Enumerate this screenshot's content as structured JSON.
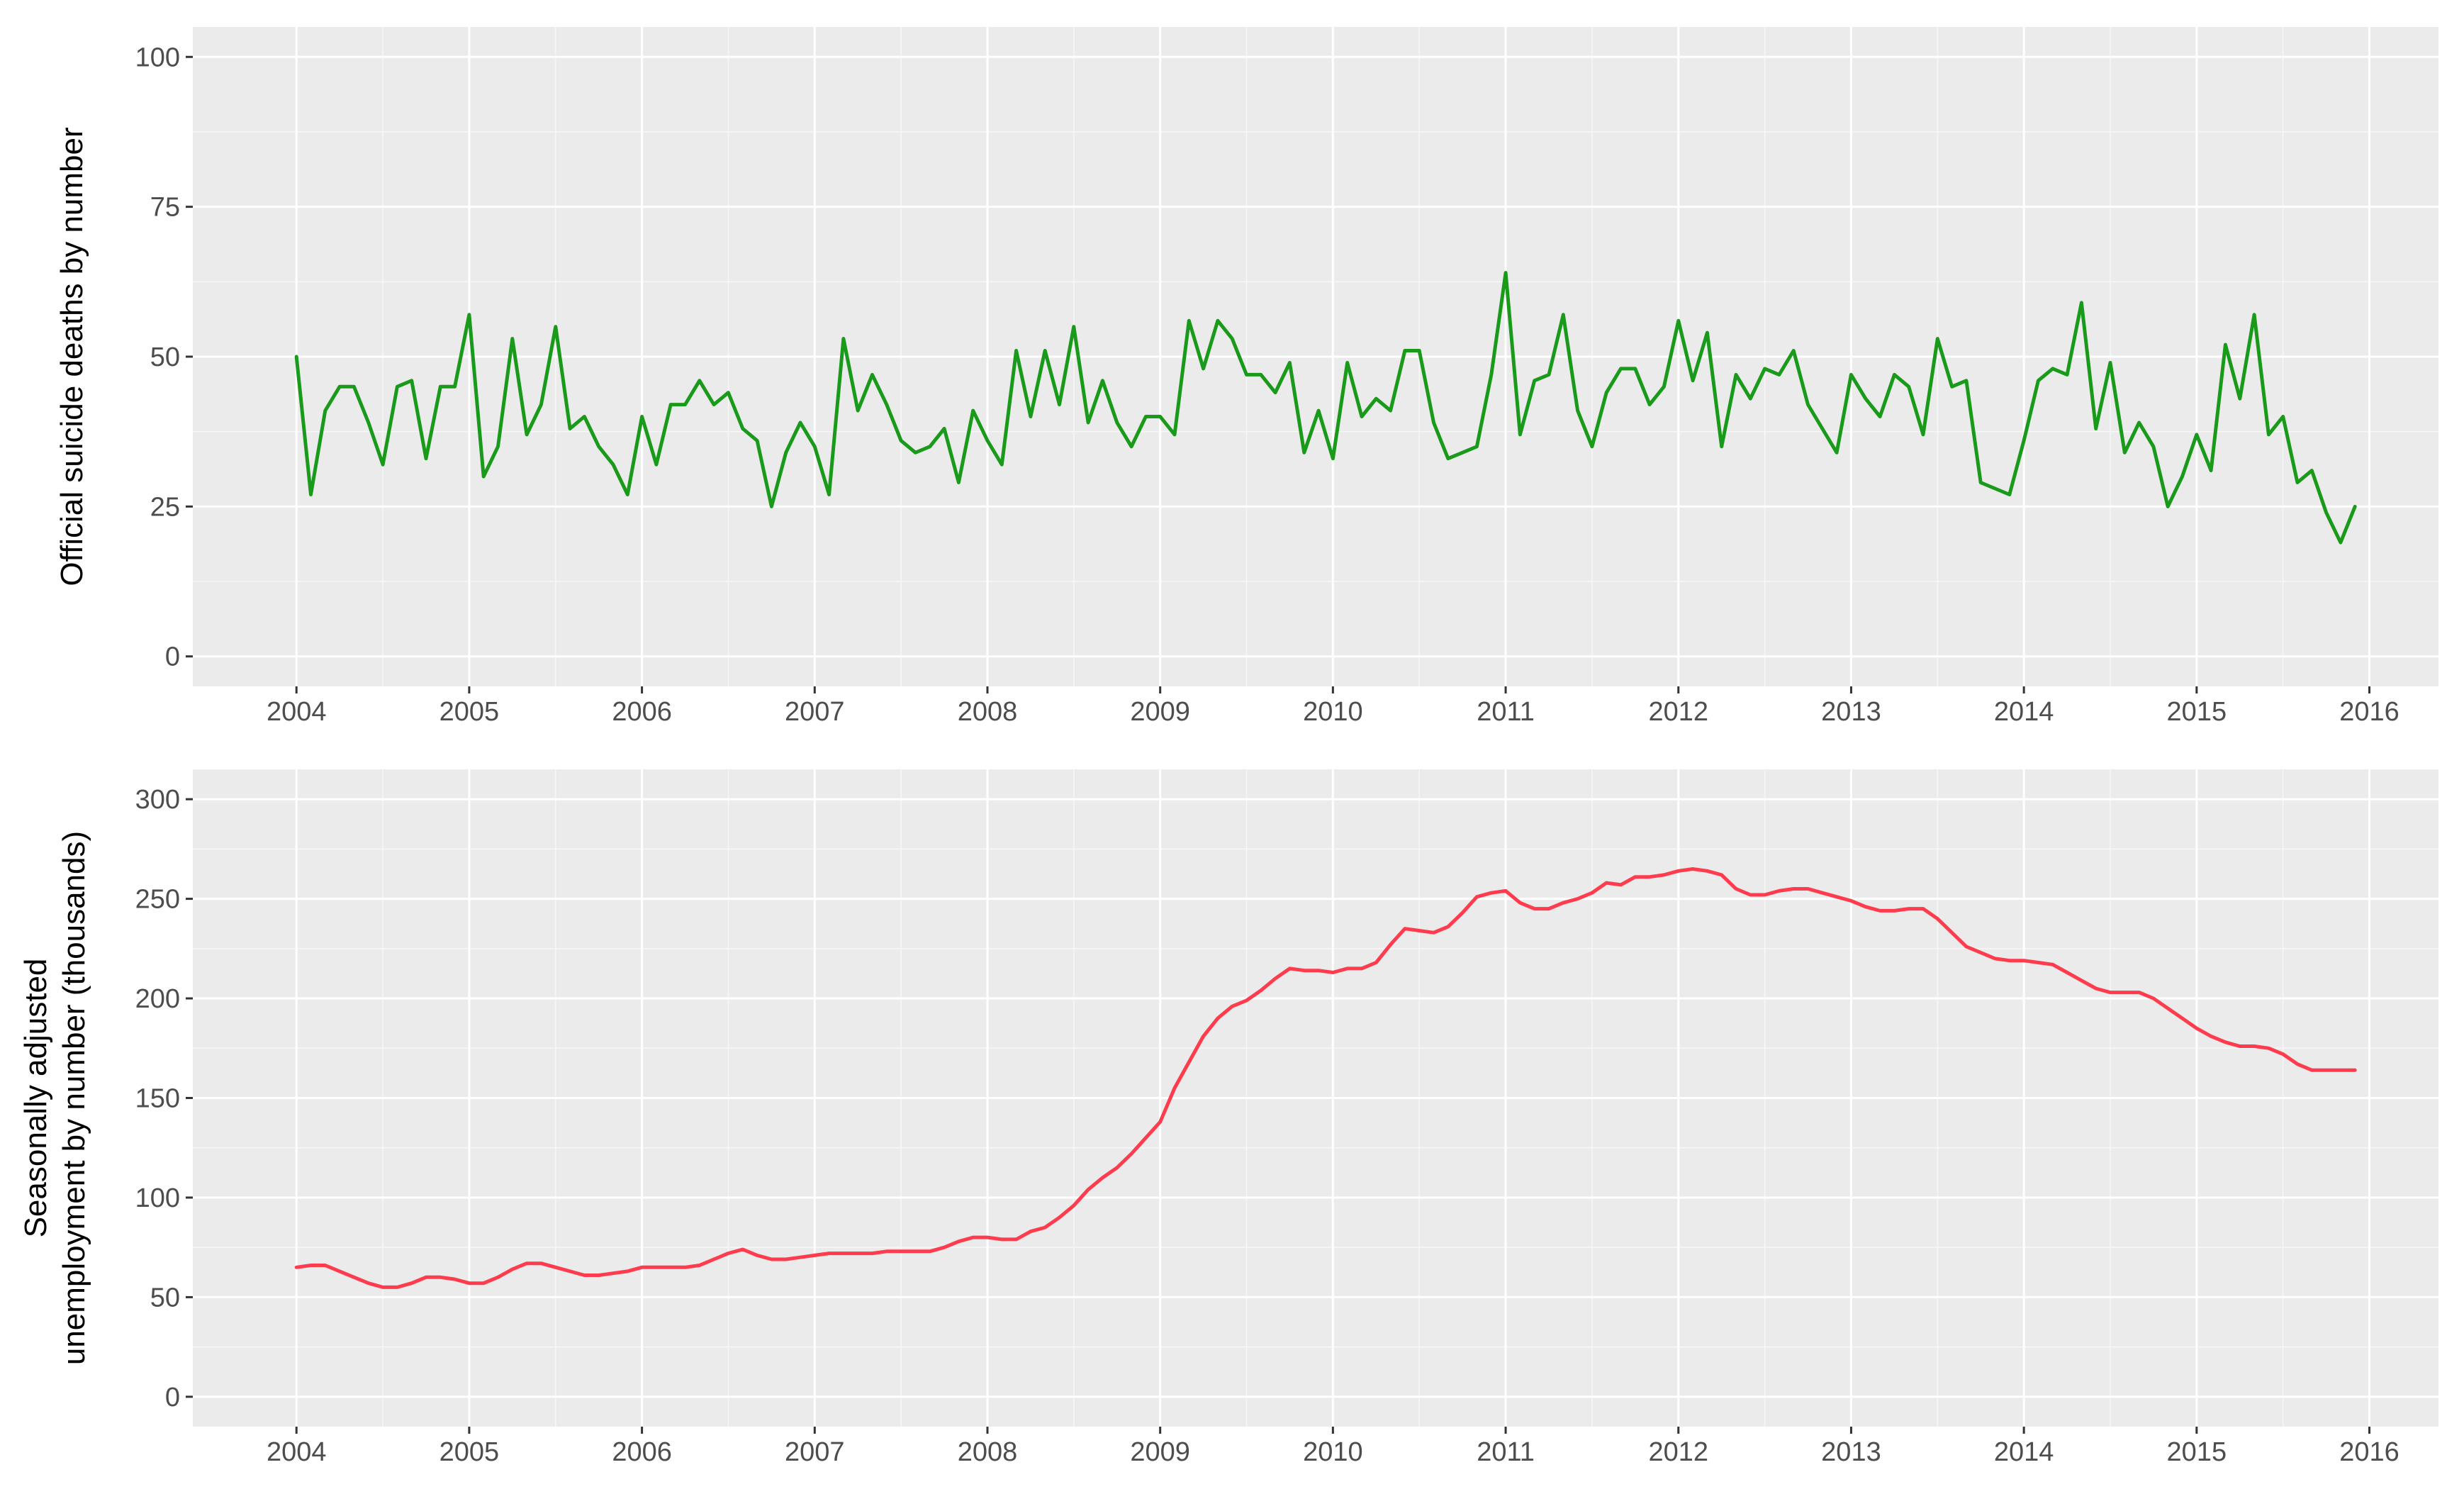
{
  "chart_data": [
    {
      "type": "line",
      "ylabel": "Official suicide deaths by number",
      "xlim": [
        2003.4,
        2016.4
      ],
      "ylim": [
        -5,
        105
      ],
      "x_ticks": [
        2004,
        2005,
        2006,
        2007,
        2008,
        2009,
        2010,
        2011,
        2012,
        2013,
        2014,
        2015,
        2016
      ],
      "x_tick_labels": [
        "2004",
        "2005",
        "2006",
        "2007",
        "2008",
        "2009",
        "2010",
        "2011",
        "2012",
        "2013",
        "2014",
        "2015",
        "2016"
      ],
      "y_ticks": [
        0,
        25,
        50,
        75,
        100
      ],
      "y_tick_labels": [
        "0",
        "25",
        "50",
        "75",
        "100"
      ],
      "grid": true,
      "series": [
        {
          "color": "#1a9a1a",
          "x_start": 2004,
          "step": 0.08333333,
          "values": [
            50,
            27,
            41,
            45,
            45,
            39,
            32,
            45,
            46,
            33,
            45,
            45,
            57,
            30,
            35,
            53,
            37,
            42,
            55,
            38,
            40,
            35,
            32,
            27,
            40,
            32,
            42,
            42,
            46,
            42,
            44,
            38,
            36,
            25,
            34,
            39,
            35,
            27,
            53,
            41,
            47,
            42,
            36,
            34,
            35,
            38,
            29,
            41,
            36,
            32,
            51,
            40,
            51,
            42,
            55,
            39,
            46,
            39,
            35,
            40,
            40,
            37,
            56,
            48,
            56,
            53,
            47,
            47,
            44,
            49,
            34,
            41,
            33,
            49,
            40,
            43,
            41,
            51,
            51,
            39,
            33,
            34,
            35,
            47,
            64,
            37,
            46,
            47,
            57,
            41,
            35,
            44,
            48,
            48,
            42,
            45,
            56,
            46,
            54,
            35,
            47,
            43,
            48,
            47,
            51,
            42,
            38,
            34,
            47,
            43,
            40,
            47,
            45,
            37,
            53,
            45,
            46,
            29,
            28,
            27,
            36,
            46,
            48,
            47,
            59,
            38,
            49,
            34,
            39,
            35,
            25,
            30,
            37,
            31,
            52,
            43,
            57,
            37,
            40,
            29,
            31,
            24,
            19,
            25
          ]
        }
      ]
    },
    {
      "type": "line",
      "ylabel": "Seasonally adjusted\nunemployment by number (thousands)",
      "ylabel_lines": [
        "Seasonally adjusted",
        "unemployment by number (thousands)"
      ],
      "xlim": [
        2003.4,
        2016.4
      ],
      "ylim": [
        -15,
        315
      ],
      "x_ticks": [
        2004,
        2005,
        2006,
        2007,
        2008,
        2009,
        2010,
        2011,
        2012,
        2013,
        2014,
        2015,
        2016
      ],
      "x_tick_labels": [
        "2004",
        "2005",
        "2006",
        "2007",
        "2008",
        "2009",
        "2010",
        "2011",
        "2012",
        "2013",
        "2014",
        "2015",
        "2016"
      ],
      "y_ticks": [
        0,
        50,
        100,
        150,
        200,
        250,
        300
      ],
      "y_tick_labels": [
        "0",
        "50",
        "100",
        "150",
        "200",
        "250",
        "300"
      ],
      "grid": true,
      "series": [
        {
          "color": "#ff3b4e",
          "x_start": 2004,
          "step": 0.08333333,
          "values": [
            65,
            66,
            66,
            63,
            60,
            57,
            55,
            55,
            57,
            60,
            60,
            59,
            57,
            57,
            60,
            64,
            67,
            67,
            65,
            63,
            61,
            61,
            62,
            63,
            65,
            65,
            65,
            65,
            66,
            69,
            72,
            74,
            71,
            69,
            69,
            70,
            71,
            72,
            72,
            72,
            72,
            73,
            73,
            73,
            73,
            75,
            78,
            80,
            80,
            79,
            79,
            83,
            85,
            90,
            96,
            104,
            110,
            115,
            122,
            130,
            138,
            155,
            168,
            181,
            190,
            196,
            199,
            204,
            210,
            215,
            214,
            214,
            213,
            215,
            215,
            218,
            227,
            235,
            234,
            233,
            236,
            243,
            251,
            253,
            254,
            248,
            245,
            245,
            248,
            250,
            253,
            258,
            257,
            261,
            261,
            262,
            264,
            265,
            264,
            262,
            255,
            252,
            252,
            254,
            255,
            255,
            253,
            251,
            249,
            246,
            244,
            244,
            245,
            245,
            240,
            233,
            226,
            223,
            220,
            219,
            219,
            218,
            217,
            213,
            209,
            205,
            203,
            203,
            203,
            200,
            195,
            190,
            185,
            181,
            178,
            176,
            176,
            175,
            172,
            167,
            164,
            164,
            164,
            164
          ]
        }
      ]
    }
  ]
}
